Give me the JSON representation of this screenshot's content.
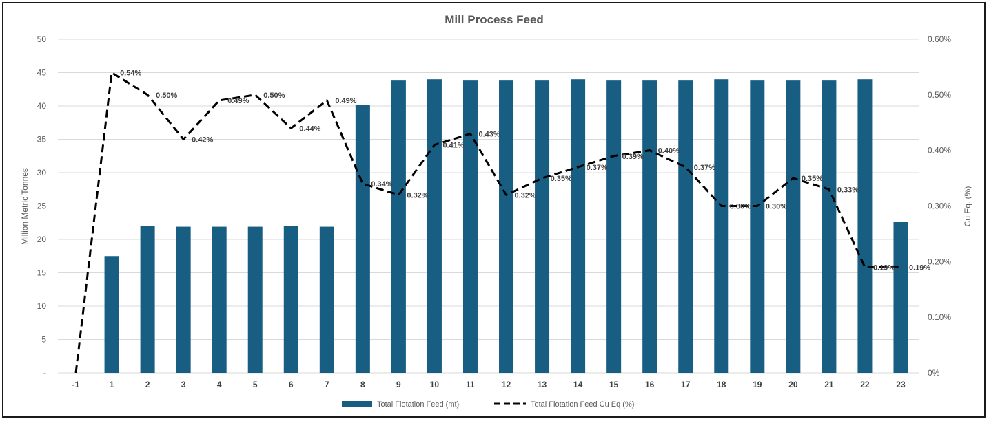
{
  "chart_data": {
    "type": "bar",
    "title": "Mill Process Feed",
    "categories": [
      "-1",
      "1",
      "2",
      "3",
      "4",
      "5",
      "6",
      "7",
      "8",
      "9",
      "10",
      "11",
      "12",
      "13",
      "14",
      "15",
      "16",
      "17",
      "18",
      "19",
      "20",
      "21",
      "22",
      "23"
    ],
    "series": [
      {
        "name": "Total Flotation Feed (mt)",
        "type": "bar",
        "axis": "left",
        "color": "#175E82",
        "values": [
          0,
          17.5,
          22.0,
          21.9,
          21.9,
          21.9,
          22.0,
          21.9,
          40.2,
          43.8,
          44.0,
          43.8,
          43.8,
          43.8,
          44.0,
          43.8,
          43.8,
          43.8,
          44.0,
          43.8,
          43.8,
          43.8,
          44.0,
          22.6
        ]
      },
      {
        "name": "Total Flotation Feed Cu Eq (%)",
        "type": "line",
        "axis": "right",
        "style": "dashed",
        "color": "#000000",
        "values": [
          0,
          0.54,
          0.5,
          0.42,
          0.49,
          0.5,
          0.44,
          0.49,
          0.34,
          0.32,
          0.41,
          0.43,
          0.32,
          0.35,
          0.37,
          0.39,
          0.4,
          0.37,
          0.3,
          0.3,
          0.35,
          0.33,
          0.19,
          0.19
        ],
        "labels": [
          "",
          "0.54%",
          "0.50%",
          "0.42%",
          "0.49%",
          "0.50%",
          "0.44%",
          "0.49%",
          "0.34%",
          "0.32%",
          "0.41%",
          "0.43%",
          "0.32%",
          "0.35%",
          "0.37%",
          "0.39%",
          "0.40%",
          "0.37%",
          "0.30%",
          "0.30%",
          "0.35%",
          "0.33%",
          "0.19%",
          "0.19%"
        ]
      }
    ],
    "ylabel": "Million Metric Tonnes",
    "ylabel_right": "Cu Eq. (%)",
    "xlabel": "",
    "ylim": [
      0,
      50
    ],
    "ylim_right": [
      0,
      0.006
    ],
    "yticks": [
      "-",
      "5",
      "10",
      "15",
      "20",
      "25",
      "30",
      "35",
      "40",
      "45",
      "50"
    ],
    "yticks_right": [
      "0%",
      "0.10%",
      "0.20%",
      "0.30%",
      "0.40%",
      "0.50%",
      "0.60%"
    ],
    "grid": true,
    "legend_position": "bottom"
  }
}
